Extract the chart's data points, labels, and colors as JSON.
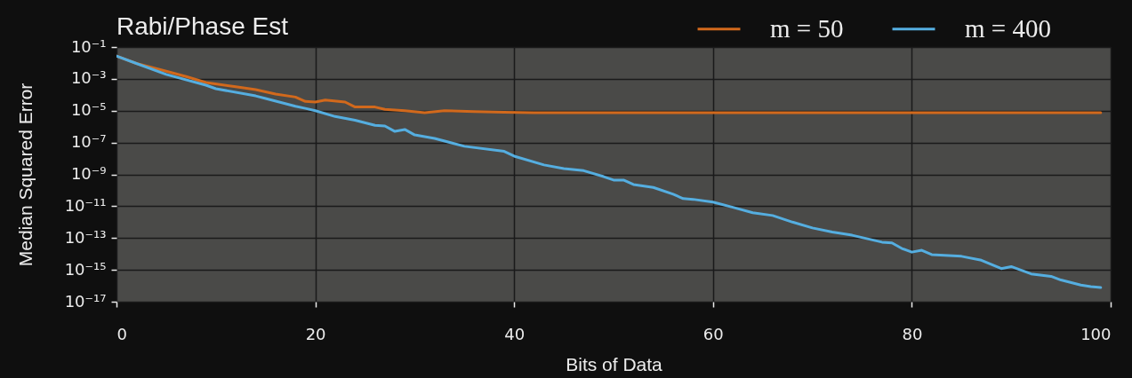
{
  "chart_data": {
    "type": "line",
    "title": "Rabi/Phase Est",
    "xlabel": "Bits of Data",
    "ylabel": "Median Squared Error",
    "log": "y",
    "xlim": [
      0,
      100
    ],
    "xticks": [
      0,
      20,
      40,
      60,
      80,
      100
    ],
    "ylim": [
      1e-17,
      0.1
    ],
    "yticks": [
      {
        "value": 0.1,
        "label": "10⁻¹"
      },
      {
        "value": 0.001,
        "label": "10⁻³"
      },
      {
        "value": 1e-05,
        "label": "10⁻⁵"
      },
      {
        "value": 1e-07,
        "label": "10⁻⁷"
      },
      {
        "value": 1e-09,
        "label": "10⁻⁹"
      },
      {
        "value": 1e-11,
        "label": "10⁻¹¹"
      },
      {
        "value": 1e-13,
        "label": "10⁻¹³"
      },
      {
        "value": 1e-15,
        "label": "10⁻¹⁵"
      },
      {
        "value": 1e-17,
        "label": "10⁻¹⁷"
      }
    ],
    "grid": true,
    "legend": "top right",
    "marker": "none",
    "line_style": "solid",
    "series": [
      {
        "name": "m = 50",
        "color": "#d2691c",
        "x": [
          0,
          2,
          5,
          7,
          9,
          12,
          14,
          16,
          18,
          19,
          20,
          21,
          23,
          24,
          26,
          27,
          29,
          31,
          33,
          36,
          39,
          42,
          50,
          60,
          70,
          80,
          90,
          99
        ],
        "values": [
          0.027,
          0.0093,
          0.003,
          0.0014,
          0.00059,
          0.00032,
          0.00021,
          0.00011,
          7.2e-05,
          3.8e-05,
          3.5e-05,
          4.7e-05,
          3.5e-05,
          1.7e-05,
          1.7e-05,
          1.2e-05,
          1e-05,
          7.6e-06,
          1e-05,
          8.9e-06,
          7.9e-06,
          7.4e-06,
          7.4e-06,
          7.4e-06,
          7.4e-06,
          7.4e-06,
          7.4e-06,
          7.4e-06
        ]
      },
      {
        "name": "m = 400",
        "color": "#55aee0",
        "x": [
          0,
          2,
          5,
          9,
          10,
          14,
          15,
          18,
          19,
          20,
          22,
          24,
          26,
          27,
          28,
          29,
          30,
          32,
          35,
          39,
          40,
          43,
          45,
          47,
          49,
          50,
          51,
          52,
          54,
          56,
          57,
          58,
          60,
          62,
          64,
          66,
          68,
          70,
          72,
          74,
          77,
          78,
          79,
          80,
          81,
          82,
          85,
          87,
          89,
          90,
          92,
          94,
          95,
          97,
          98,
          99
        ],
        "values": [
          0.027,
          0.0093,
          0.0019,
          0.0004,
          0.00024,
          8.5e-05,
          5.9e-05,
          1.9e-05,
          1.4e-05,
          1e-05,
          4.3e-06,
          2.5e-06,
          1.2e-06,
          1.1e-06,
          5e-07,
          6.6e-07,
          3e-07,
          1.8e-07,
          5.8e-08,
          2.8e-08,
          1.4e-08,
          3.9e-09,
          2.3e-09,
          1.7e-09,
          7.2e-10,
          4.4e-10,
          4.4e-10,
          2.3e-10,
          1.5e-10,
          5.6e-11,
          3e-11,
          2.7e-11,
          1.8e-11,
          8.5e-12,
          3.9e-12,
          2.6e-12,
          1e-12,
          4.3e-13,
          2.4e-13,
          1.5e-13,
          5.5e-14,
          4.9e-14,
          2.2e-14,
          1.3e-14,
          1.7e-14,
          9.1e-15,
          7.1e-15,
          4e-15,
          1.2e-15,
          1.6e-15,
          5.6e-16,
          3.9e-16,
          2.3e-16,
          1.1e-16,
          8.9e-17,
          7.8e-17
        ]
      }
    ]
  }
}
